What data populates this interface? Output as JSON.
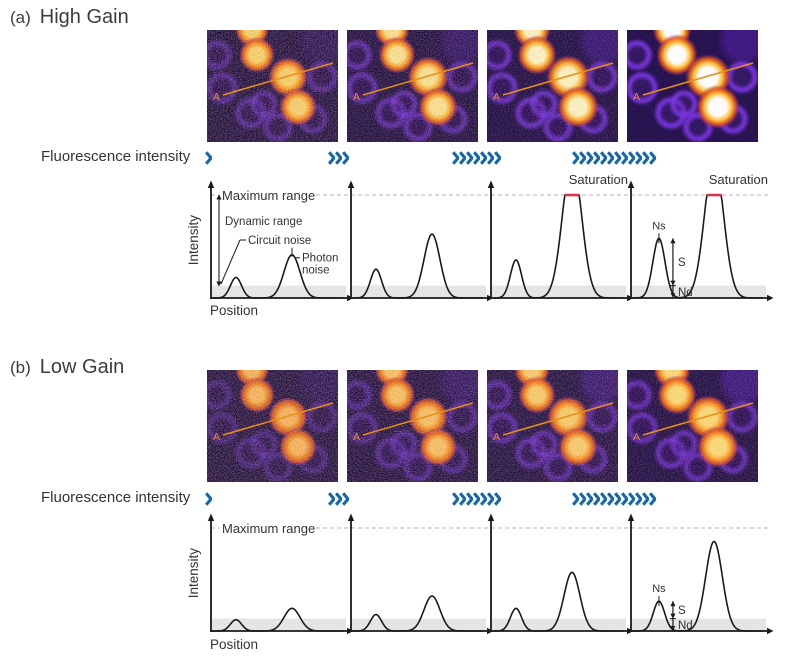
{
  "colors": {
    "chevron": "#1566ad",
    "saturation": "#e0344e",
    "scan_line": "#e89018",
    "curve": "#1a1a1a",
    "noise_band": "#e5e5e5",
    "dashed": "#b3b3b3",
    "text": "#333333"
  },
  "panel_a": {
    "label": "(a)",
    "title": "High Gain",
    "flow_label": "Fluorescence intensity",
    "chevron_counts": [
      1,
      3,
      7,
      12
    ],
    "images": [
      {
        "marker": "A",
        "gain_step": 1
      },
      {
        "marker": "A",
        "gain_step": 2
      },
      {
        "marker": "A",
        "gain_step": 3
      },
      {
        "marker": "A",
        "gain_step": 4
      }
    ],
    "y_label": "Intensity",
    "x_label": "Position"
  },
  "panel_b": {
    "label": "(b)",
    "title": "Low Gain",
    "flow_label": "Fluorescence intensity",
    "chevron_counts": [
      1,
      3,
      7,
      12
    ],
    "images": [
      {
        "marker": "A",
        "gain_step": 1
      },
      {
        "marker": "A",
        "gain_step": 2
      },
      {
        "marker": "A",
        "gain_step": 3
      },
      {
        "marker": "A",
        "gain_step": 4
      }
    ],
    "y_label": "Intensity",
    "x_label": "Position"
  },
  "chart_data": {
    "type": "line",
    "description": "Fluorescence intensity line profiles along line A at increasing fluorescence intensity, for high and low detector gain",
    "xlabel": "Position",
    "ylabel": "Intensity",
    "ylim": [
      0,
      1
    ],
    "panels": [
      {
        "panel": "a",
        "gain": "High Gain",
        "plots": [
          {
            "noise_floor": 0.12,
            "saturated": false,
            "peaks": [
              {
                "center": 0.185,
                "height": 0.2,
                "sigma": 0.041
              },
              {
                "center": 0.6,
                "height": 0.42,
                "sigma": 0.059
              }
            ],
            "labels": {
              "max_range": "Maximum range",
              "dynamic_range": "Dynamic range",
              "circuit_noise": "Circuit noise",
              "photon_noise": "Photon noise"
            }
          },
          {
            "noise_floor": 0.12,
            "saturated": false,
            "peaks": [
              {
                "center": 0.185,
                "height": 0.28,
                "sigma": 0.041
              },
              {
                "center": 0.6,
                "height": 0.62,
                "sigma": 0.059
              }
            ],
            "labels": {}
          },
          {
            "noise_floor": 0.12,
            "saturated": true,
            "peaks": [
              {
                "center": 0.185,
                "height": 0.37,
                "sigma": 0.041
              },
              {
                "center": 0.6,
                "height": 1.35,
                "sigma": 0.07
              }
            ],
            "labels": {
              "saturation": "Saturation"
            }
          },
          {
            "noise_floor": 0.12,
            "saturated": true,
            "peaks": [
              {
                "center": 0.207,
                "height": 0.58,
                "sigma": 0.045
              },
              {
                "center": 0.615,
                "height": 1.35,
                "sigma": 0.07
              }
            ],
            "labels": {
              "saturation": "Saturation",
              "ns": "Ns",
              "s": "S",
              "nd": "Nd"
            }
          }
        ]
      },
      {
        "panel": "b",
        "gain": "Low Gain",
        "plots": [
          {
            "noise_floor": 0.12,
            "saturated": false,
            "peaks": [
              {
                "center": 0.185,
                "height": 0.11,
                "sigma": 0.041
              },
              {
                "center": 0.6,
                "height": 0.22,
                "sigma": 0.059
              }
            ],
            "labels": {
              "max_range": "Maximum range"
            }
          },
          {
            "noise_floor": 0.12,
            "saturated": false,
            "peaks": [
              {
                "center": 0.185,
                "height": 0.16,
                "sigma": 0.041
              },
              {
                "center": 0.6,
                "height": 0.34,
                "sigma": 0.059
              }
            ],
            "labels": {}
          },
          {
            "noise_floor": 0.12,
            "saturated": false,
            "peaks": [
              {
                "center": 0.185,
                "height": 0.22,
                "sigma": 0.041
              },
              {
                "center": 0.6,
                "height": 0.57,
                "sigma": 0.059
              }
            ],
            "labels": {}
          },
          {
            "noise_floor": 0.12,
            "saturated": false,
            "peaks": [
              {
                "center": 0.207,
                "height": 0.29,
                "sigma": 0.042
              },
              {
                "center": 0.615,
                "height": 0.87,
                "sigma": 0.062
              }
            ],
            "labels": {
              "ns": "Ns",
              "s": "S",
              "nd": "Nd"
            }
          }
        ]
      }
    ]
  }
}
